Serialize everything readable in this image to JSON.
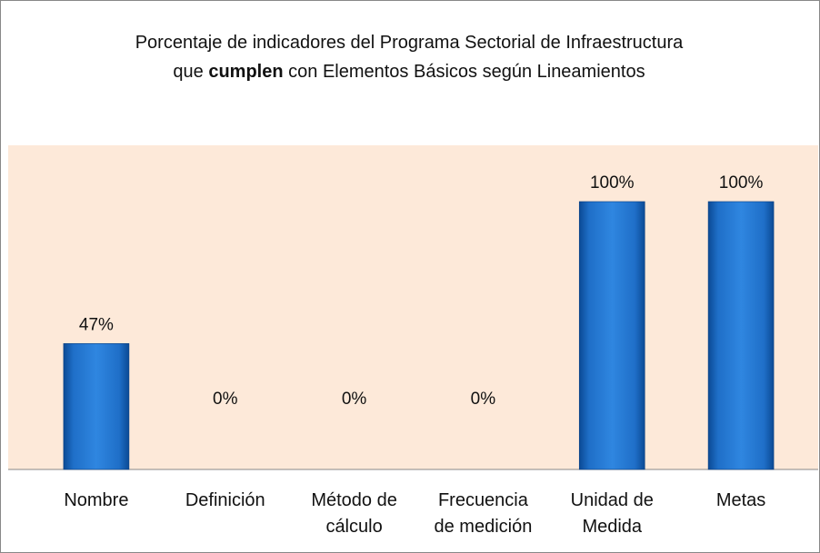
{
  "chart_data": {
    "type": "bar",
    "title": [
      "Porcentaje de indicadores del Programa Sectorial de Infraestructura que ",
      "cumplen",
      " con Elementos Básicos según Lineamientos"
    ],
    "title_bold": [
      false,
      true,
      false
    ],
    "categories": [
      "Nombre",
      "Definición",
      "Método de cálculo",
      "Frecuencia de medición",
      "Unidad de Medida",
      "Metas"
    ],
    "values": [
      47,
      0,
      0,
      0,
      100,
      100
    ],
    "value_labels": [
      "47%",
      "0%",
      "0%",
      "0%",
      "100%",
      "100%"
    ],
    "color": "#1f6fc8",
    "ylim": [
      0,
      100
    ]
  }
}
